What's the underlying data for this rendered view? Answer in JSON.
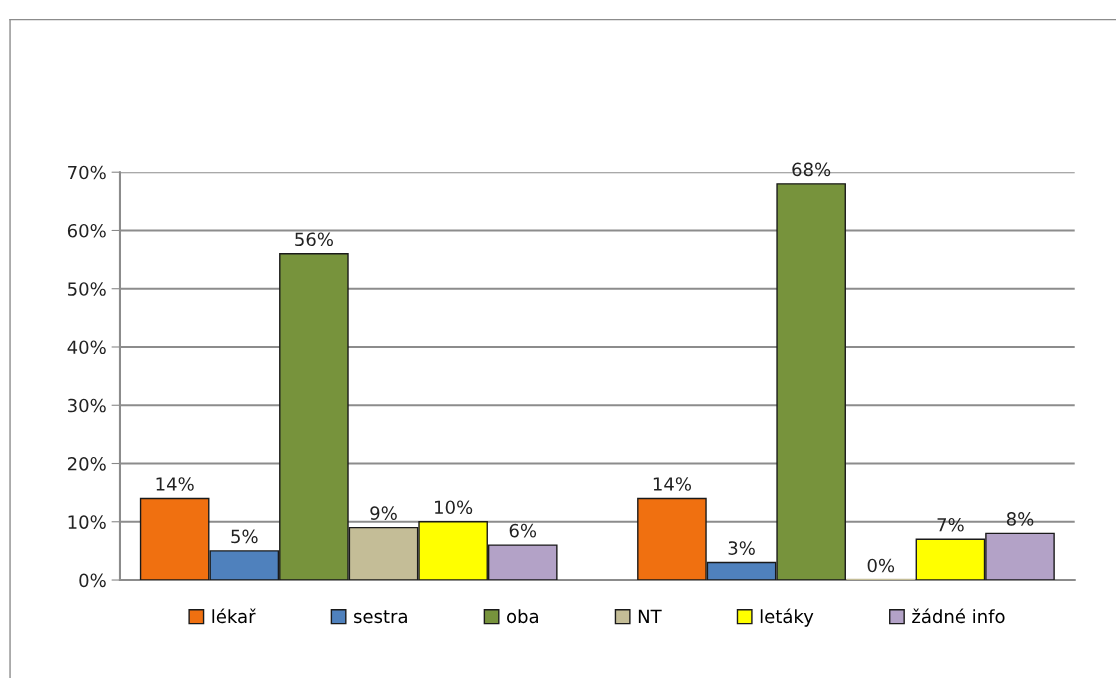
{
  "chart_data": {
    "type": "bar",
    "categories": [
      null,
      null
    ],
    "series": [
      {
        "name": "lékař",
        "color": "#f07010",
        "values": [
          14,
          14
        ],
        "value_labels": [
          "14%",
          "14%"
        ]
      },
      {
        "name": "sestra",
        "color": "#4f81bd",
        "values": [
          5,
          3
        ],
        "value_labels": [
          "5%",
          "3%"
        ]
      },
      {
        "name": "oba",
        "color": "#77933c",
        "values": [
          56,
          68
        ],
        "value_labels": [
          "56%",
          "68%"
        ]
      },
      {
        "name": "NT",
        "color": "#c4bd97",
        "values": [
          9,
          0
        ],
        "value_labels": [
          "9%",
          "0%"
        ]
      },
      {
        "name": "letáky",
        "color": "#ffff00",
        "values": [
          10,
          7
        ],
        "value_labels": [
          "10%",
          "7%"
        ]
      },
      {
        "name": "žádné info",
        "color": "#b3a2c7",
        "values": [
          6,
          8
        ],
        "value_labels": [
          "6%",
          "8%"
        ]
      }
    ],
    "ylim": [
      0,
      70
    ],
    "yticks": [
      {
        "value": 0,
        "label": "0%"
      },
      {
        "value": 10,
        "label": "10%"
      },
      {
        "value": 20,
        "label": "20%"
      },
      {
        "value": 30,
        "label": "30%"
      },
      {
        "value": 40,
        "label": "40%"
      },
      {
        "value": 50,
        "label": "50%"
      },
      {
        "value": 60,
        "label": "60%"
      },
      {
        "value": 70,
        "label": "70%"
      }
    ],
    "grid": "y",
    "legend": "bottom",
    "tick_labels": "y"
  }
}
